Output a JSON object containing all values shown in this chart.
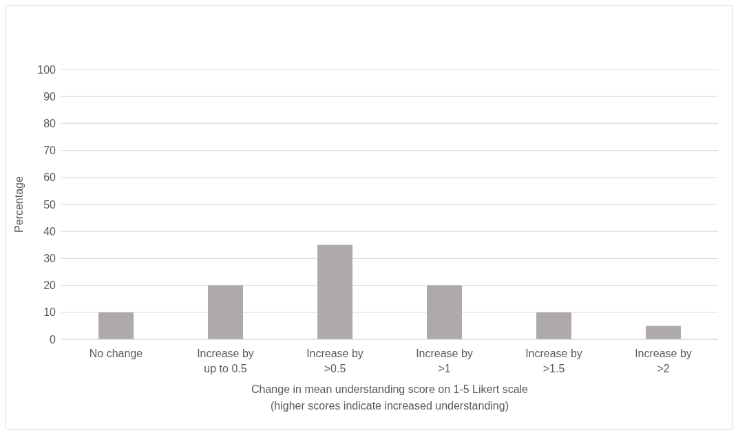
{
  "chart_data": {
    "type": "bar",
    "categories": [
      "No change",
      "Increase by up to 0.5",
      "Increase by >0.5",
      "Increase by >1",
      "Increase by >1.5",
      "Increase by >2"
    ],
    "values": [
      10,
      20,
      35,
      20,
      10,
      5
    ],
    "color": "#aeaaaa",
    "xlabel": "Change in mean understanding score on 1-5 Likert scale\n(higher scores indicate increased understanding)",
    "ylabel": "Percentage",
    "ylim": [
      0,
      100
    ],
    "yticks": [
      0,
      10,
      20,
      30,
      40,
      50,
      60,
      70,
      80,
      90,
      100
    ],
    "grid": "y",
    "legend": false
  }
}
